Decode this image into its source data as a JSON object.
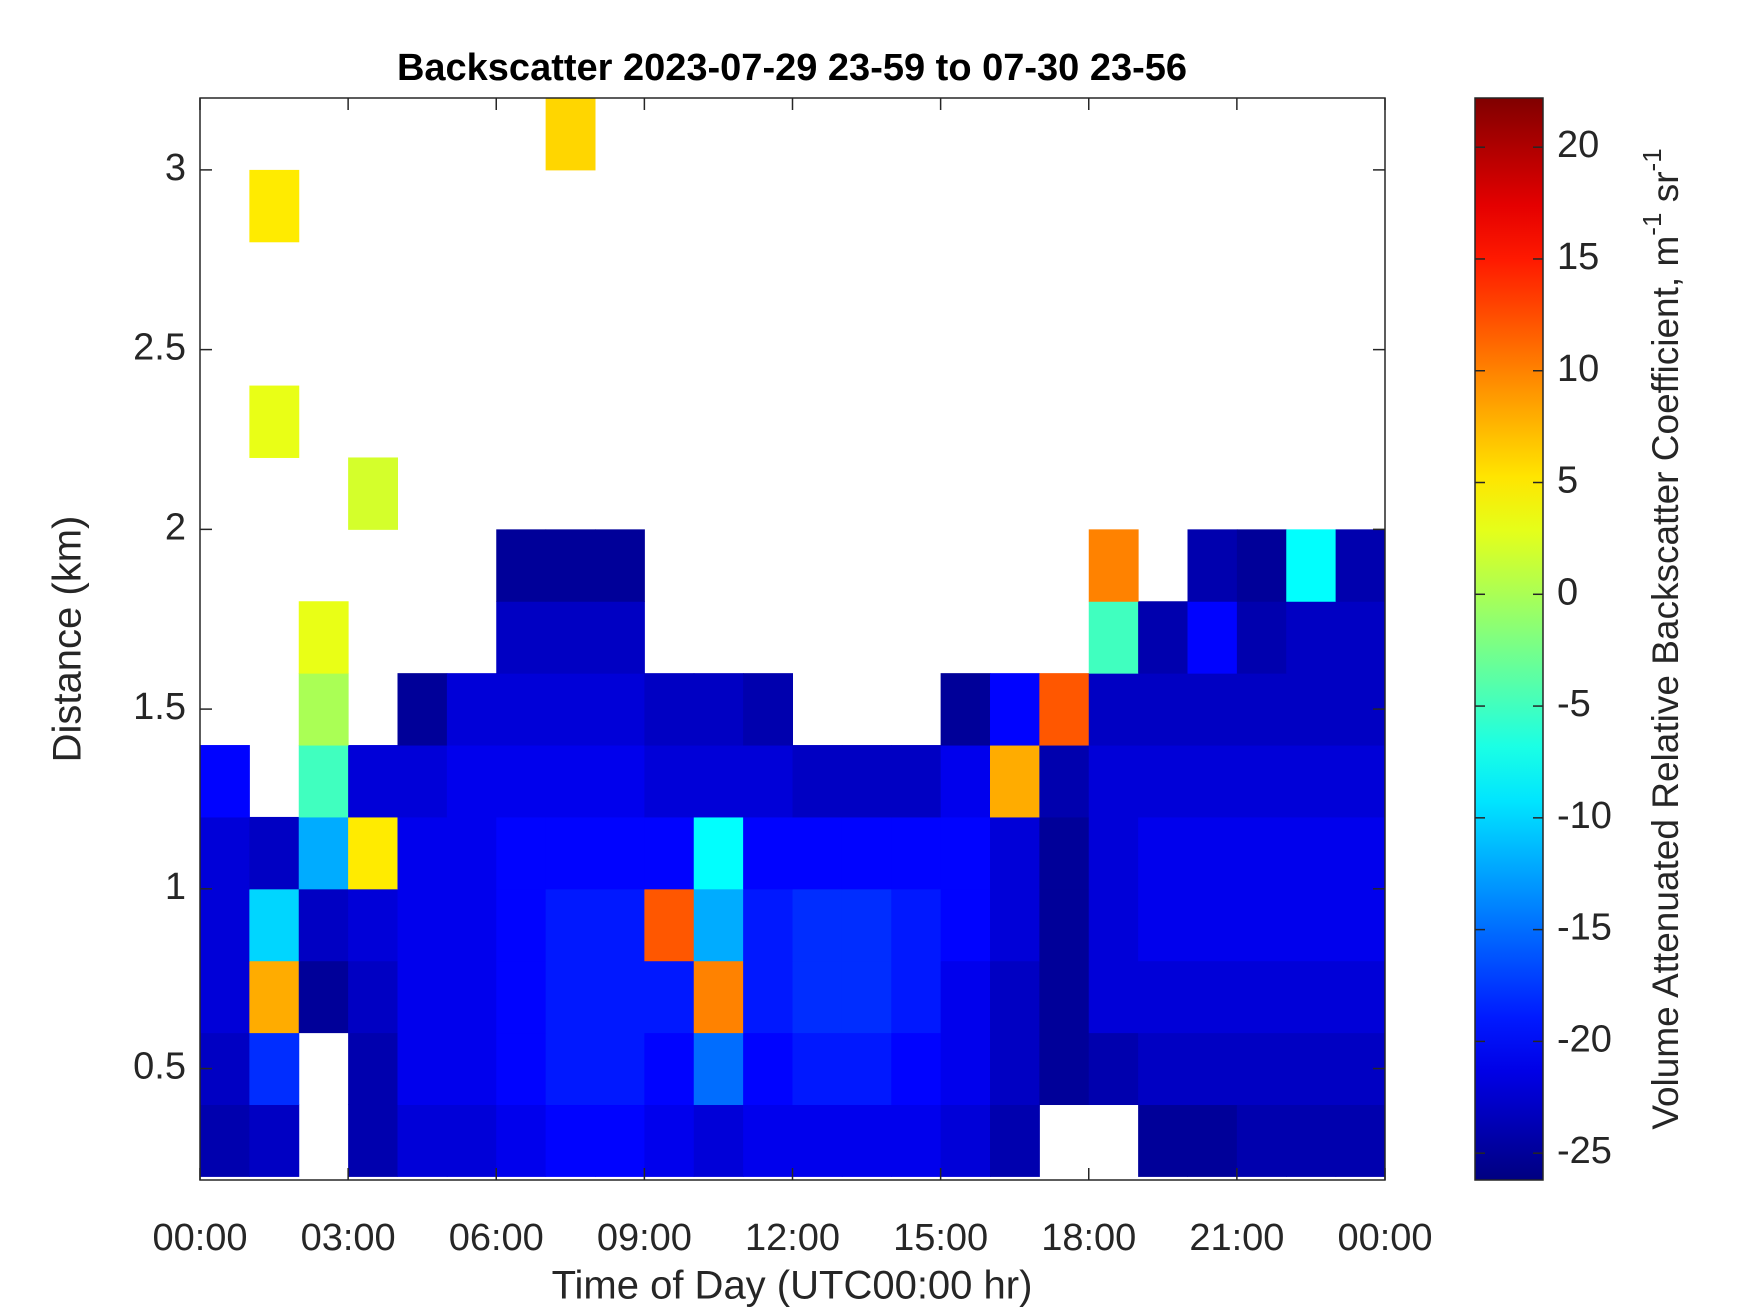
{
  "chart_data": {
    "type": "heatmap",
    "title": "Backscatter 2023-07-29 23-59 to 07-30 23-56",
    "xlabel": "Time of Day (UTC00:00 hr)",
    "ylabel": "Distance (km)",
    "colorbar_label": {
      "text": "Volume Attenuated Relative Backscatter Coefficient, m",
      "sup1": "-1",
      "mid": " sr",
      "sup2": "-1"
    },
    "colormap": "jet",
    "x": [
      0.5,
      1.5,
      2.5,
      3.5,
      4.5,
      5.5,
      6.5,
      7.5,
      8.5,
      9.5,
      10.5,
      11.5,
      12.5,
      13.5,
      14.5,
      15.5,
      16.5,
      17.5,
      18.5,
      19.5,
      20.5,
      21.5,
      22.5,
      23.5
    ],
    "y": [
      0.3,
      0.5,
      0.7,
      0.9,
      1.1,
      1.3,
      1.5,
      1.7,
      1.9,
      2.1,
      2.3,
      2.5,
      2.7,
      2.9,
      3.1
    ],
    "values": [
      [
        -24,
        -23,
        null,
        -24,
        -22,
        -22,
        -21,
        -20,
        -20,
        -21,
        -22,
        -21,
        -21,
        -21,
        -21,
        -22,
        -24,
        null,
        null,
        -25,
        -25,
        -24,
        -24,
        -24
      ],
      [
        -23,
        -18,
        null,
        -24,
        -21,
        -21,
        -20,
        -19,
        -19,
        -20,
        -15,
        -20,
        -19,
        -19,
        -20,
        -21,
        -23,
        -25,
        -24,
        -23,
        -23,
        -23,
        -23,
        -23
      ],
      [
        -22,
        8,
        -25,
        -23,
        -21,
        -21,
        -20,
        -19,
        -19,
        -19,
        10,
        -19,
        -18,
        -18,
        -19,
        -21,
        -23,
        -25,
        -22,
        -22,
        -22,
        -22,
        -22,
        -22
      ],
      [
        -22,
        -10,
        -23,
        -22,
        -21,
        -21,
        -20,
        -19,
        -19,
        12,
        -12,
        -19,
        -18,
        -18,
        -19,
        -20,
        -22,
        -25,
        -22,
        -21,
        -21,
        -21,
        -21,
        -21
      ],
      [
        -22,
        -23,
        -12,
        5,
        -21,
        -21,
        -20,
        -20,
        -20,
        -20,
        -8,
        -20,
        -20,
        -20,
        -20,
        -20,
        -22,
        -25,
        -22,
        -21,
        -21,
        -21,
        -21,
        -21
      ],
      [
        -20,
        null,
        -5,
        -22,
        -22,
        -21,
        -21,
        -21,
        -21,
        -22,
        -22,
        -22,
        -23,
        -23,
        -23,
        -21,
        8,
        -24,
        -22,
        -22,
        -22,
        -22,
        -22,
        -22
      ],
      [
        null,
        null,
        0,
        null,
        -25,
        -22,
        -22,
        -22,
        -22,
        -23,
        -23,
        -24,
        null,
        null,
        null,
        -25,
        -20,
        12,
        -23,
        -23,
        -23,
        -23,
        -23,
        -23
      ],
      [
        null,
        null,
        3,
        null,
        null,
        null,
        -23,
        -23,
        -23,
        null,
        null,
        null,
        null,
        null,
        null,
        null,
        null,
        null,
        -5,
        -24,
        -20,
        -24,
        -23,
        -23
      ],
      [
        null,
        null,
        null,
        null,
        null,
        null,
        -25,
        -25,
        -25,
        null,
        null,
        null,
        null,
        null,
        null,
        null,
        null,
        null,
        10,
        null,
        -24,
        -25,
        -8,
        -24
      ],
      [
        null,
        null,
        null,
        2,
        null,
        null,
        null,
        null,
        null,
        null,
        null,
        null,
        null,
        null,
        null,
        null,
        null,
        null,
        null,
        null,
        null,
        null,
        null,
        null
      ],
      [
        null,
        3,
        null,
        null,
        null,
        null,
        null,
        null,
        null,
        null,
        null,
        null,
        null,
        null,
        null,
        null,
        null,
        null,
        null,
        null,
        null,
        null,
        null,
        null
      ],
      [
        null,
        null,
        null,
        null,
        null,
        null,
        null,
        null,
        null,
        null,
        null,
        null,
        null,
        null,
        null,
        null,
        null,
        null,
        null,
        null,
        null,
        null,
        null,
        null
      ],
      [
        null,
        null,
        null,
        null,
        null,
        null,
        null,
        null,
        null,
        null,
        null,
        null,
        null,
        null,
        null,
        null,
        null,
        null,
        null,
        null,
        null,
        null,
        null,
        null
      ],
      [
        null,
        5,
        null,
        null,
        null,
        null,
        null,
        null,
        null,
        null,
        null,
        null,
        null,
        null,
        null,
        null,
        null,
        null,
        null,
        null,
        null,
        null,
        null,
        null
      ],
      [
        null,
        null,
        null,
        null,
        null,
        null,
        null,
        6,
        null,
        null,
        null,
        null,
        null,
        null,
        null,
        null,
        null,
        null,
        null,
        null,
        null,
        null,
        null,
        null
      ]
    ],
    "xlim": [
      0,
      24
    ],
    "xticks": [
      {
        "value": 0,
        "label": "00:00"
      },
      {
        "value": 3,
        "label": "03:00"
      },
      {
        "value": 6,
        "label": "06:00"
      },
      {
        "value": 9,
        "label": "09:00"
      },
      {
        "value": 12,
        "label": "12:00"
      },
      {
        "value": 15,
        "label": "15:00"
      },
      {
        "value": 18,
        "label": "18:00"
      },
      {
        "value": 21,
        "label": "21:00"
      },
      {
        "value": 24,
        "label": "00:00"
      }
    ],
    "ylim": [
      0.19,
      3.2
    ],
    "yticks": [
      0.5,
      1,
      1.5,
      2,
      2.5,
      3
    ],
    "clim": [
      -26.2,
      22.2
    ],
    "cticks": [
      -25,
      -20,
      -15,
      -10,
      -5,
      0,
      5,
      10,
      15,
      20
    ]
  }
}
